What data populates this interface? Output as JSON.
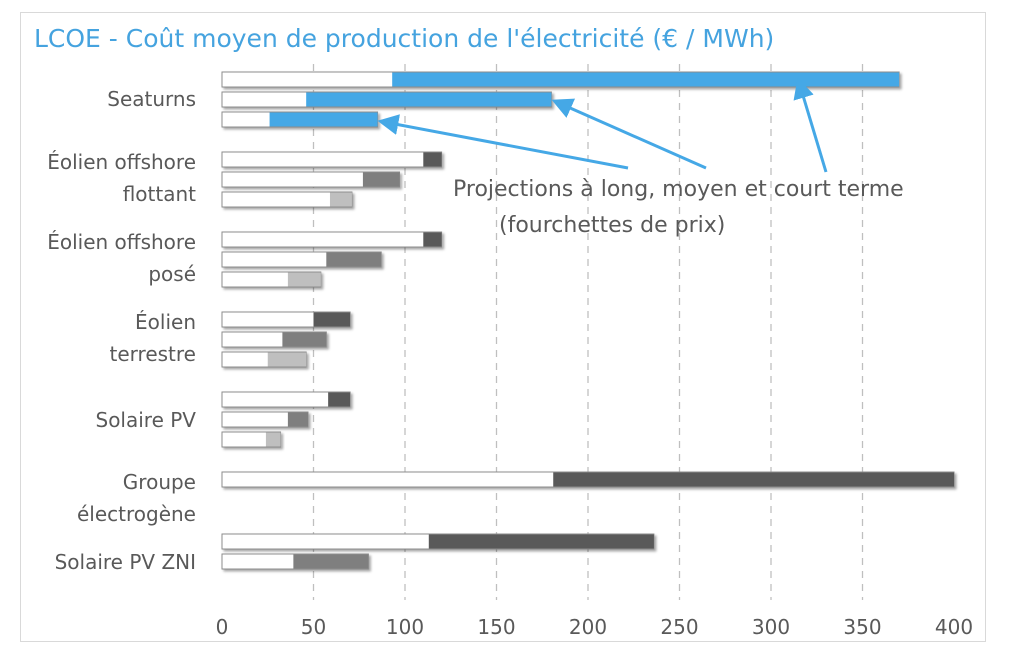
{
  "chart_data": {
    "type": "bar",
    "orientation": "horizontal",
    "title": "LCOE - Coût moyen de production de l'électricité (€ / MWh)",
    "xlim": [
      0,
      400
    ],
    "x_ticks": [
      "0",
      "50",
      "100",
      "150",
      "200",
      "250",
      "300",
      "350",
      "400"
    ],
    "grid": "vertical dashed",
    "categories": [
      {
        "label": [
          "Seaturns"
        ],
        "bars": [
          {
            "horizon": "long",
            "min": 93,
            "max": 370,
            "color": "#45a8e6"
          },
          {
            "horizon": "moyen",
            "min": 46,
            "max": 180,
            "color": "#45a8e6"
          },
          {
            "horizon": "court",
            "min": 26,
            "max": 85,
            "color": "#45a8e6"
          }
        ]
      },
      {
        "label": [
          "Éolien offshore",
          "flottant"
        ],
        "bars": [
          {
            "horizon": "long",
            "min": 110,
            "max": 120,
            "color": "#595959"
          },
          {
            "horizon": "moyen",
            "min": 77,
            "max": 97,
            "color": "#7f7f7f"
          },
          {
            "horizon": "court",
            "min": 59,
            "max": 71,
            "color": "#bfbfbf"
          }
        ]
      },
      {
        "label": [
          "Éolien offshore",
          "posé"
        ],
        "bars": [
          {
            "horizon": "long",
            "min": 110,
            "max": 120,
            "color": "#595959"
          },
          {
            "horizon": "moyen",
            "min": 57,
            "max": 87,
            "color": "#7f7f7f"
          },
          {
            "horizon": "court",
            "min": 36,
            "max": 54,
            "color": "#bfbfbf"
          }
        ]
      },
      {
        "label": [
          "Éolien",
          "terrestre"
        ],
        "bars": [
          {
            "horizon": "long",
            "min": 50,
            "max": 70,
            "color": "#595959"
          },
          {
            "horizon": "moyen",
            "min": 33,
            "max": 57,
            "color": "#7f7f7f"
          },
          {
            "horizon": "court",
            "min": 25,
            "max": 46,
            "color": "#bfbfbf"
          }
        ]
      },
      {
        "label": [
          "Solaire PV"
        ],
        "bars": [
          {
            "horizon": "long",
            "min": 58,
            "max": 70,
            "color": "#595959"
          },
          {
            "horizon": "moyen",
            "min": 36,
            "max": 47,
            "color": "#7f7f7f"
          },
          {
            "horizon": "court",
            "min": 24,
            "max": 32,
            "color": "#bfbfbf"
          }
        ]
      },
      {
        "label": [
          "Groupe",
          "électrogène"
        ],
        "bars": [
          {
            "horizon": "moyen",
            "min": 181,
            "max": 400,
            "color": "#595959"
          }
        ]
      },
      {
        "label": [
          "Solaire PV ZNI"
        ],
        "bars": [
          {
            "horizon": "moyen",
            "min": 113,
            "max": 236,
            "color": "#595959"
          },
          {
            "horizon": "court",
            "min": 39,
            "max": 80,
            "color": "#7f7f7f"
          }
        ]
      }
    ],
    "annotation": {
      "lines": [
        "Projections à long, moyen et court terme",
        "(fourchettes de prix)"
      ],
      "arrow_targets": [
        {
          "category": "Seaturns",
          "horizon": "court",
          "x": 85
        },
        {
          "category": "Seaturns",
          "horizon": "moyen",
          "x": 180
        },
        {
          "category": "Seaturns",
          "horizon": "long",
          "x": 313
        }
      ],
      "color": "#45a8e6"
    }
  }
}
